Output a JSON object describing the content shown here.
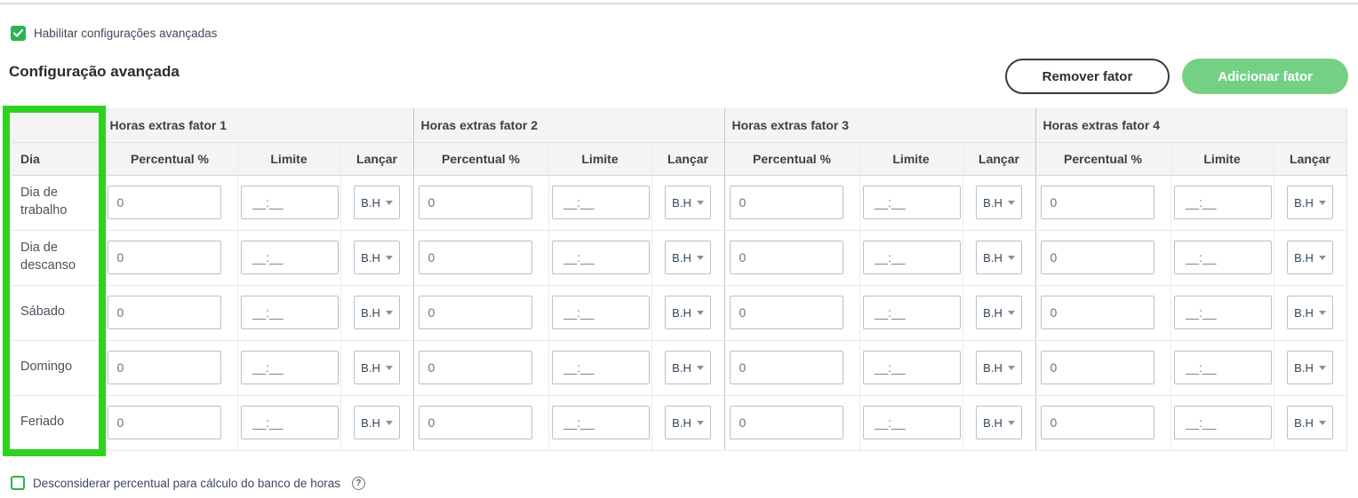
{
  "colors": {
    "annotation_green": "#2fd11f",
    "checkbox_green": "#28b450",
    "add_button_green": "#74d183"
  },
  "header": {
    "enable_checkbox": {
      "label": "Habilitar configurações avançadas",
      "checked": true
    },
    "title": "Configuração avançada",
    "remove_button_label": "Remover fator",
    "add_button_label": "Adicionar fator"
  },
  "table": {
    "day_header": "Dia",
    "groups": [
      {
        "label": "Horas extras fator 1"
      },
      {
        "label": "Horas extras fator 2"
      },
      {
        "label": "Horas extras fator 3"
      },
      {
        "label": "Horas extras fator 4"
      }
    ],
    "sub_headers": [
      "Percentual %",
      "Limite",
      "Lançar"
    ],
    "rows": [
      {
        "label": "Dia de trabalho"
      },
      {
        "label": "Dia de descanso"
      },
      {
        "label": "Sábado"
      },
      {
        "label": "Domingo"
      },
      {
        "label": "Feriado"
      }
    ],
    "cell_defaults": {
      "percent_value": "0",
      "limit_placeholder": "__:__",
      "launch_value": "B.H"
    }
  },
  "footer": {
    "checkbox": {
      "label": "Desconsiderar percentual para cálculo do banco de horas",
      "checked": false
    },
    "help_icon": "?"
  }
}
